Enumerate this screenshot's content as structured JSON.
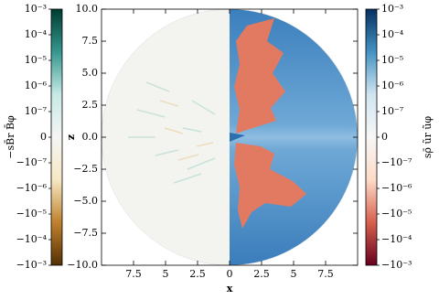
{
  "chart_data": {
    "type": "field",
    "xlabel": "x",
    "ylabel": "z",
    "xlim": [
      -10,
      10
    ],
    "xticks": [
      {
        "value": -7.5,
        "label": "7.5"
      },
      {
        "value": -5,
        "label": "5"
      },
      {
        "value": -2.5,
        "label": "2.5"
      },
      0,
      2.5,
      5,
      7.5
    ],
    "ylim": [
      -10,
      10
    ],
    "yticks": [
      {
        "value": -10,
        "label": "−10.0"
      },
      {
        "value": -7.5,
        "label": "−7.5"
      },
      {
        "value": -5,
        "label": "−5.0"
      },
      {
        "value": -2.5,
        "label": "−2.5"
      },
      {
        "value": 0,
        "label": "0.0"
      },
      {
        "value": 2.5,
        "label": "2.5"
      },
      {
        "value": 5,
        "label": "5.0"
      },
      {
        "value": 7.5,
        "label": "7.5"
      },
      {
        "value": 10,
        "label": "10.0"
      }
    ],
    "colorbars": [
      {
        "label": "−sB̄r B̄φ",
        "side": "left",
        "scale": "symlog",
        "linthresh": 1e-07,
        "lim": [
          -0.001,
          0.001
        ],
        "colors": [
          "#543005",
          "#bf812d",
          "#f6e8c3",
          "#f5f5f5",
          "#c7eae5",
          "#35978f",
          "#003c30"
        ],
        "ticks": [
          {
            "value": -0.001,
            "label": "−10⁻³"
          },
          {
            "value": -0.0001,
            "label": "−10⁻⁴"
          },
          {
            "value": -1e-05,
            "label": "−10⁻⁵"
          },
          {
            "value": -1e-06,
            "label": "−10⁻⁶"
          },
          {
            "value": -1e-07,
            "label": "−10⁻⁷"
          },
          0,
          {
            "value": 1e-07,
            "label": "10⁻⁷"
          },
          {
            "value": 1e-06,
            "label": "10⁻⁶"
          },
          {
            "value": 1e-05,
            "label": "10⁻⁵"
          },
          {
            "value": 0.0001,
            "label": "10⁻⁴"
          },
          {
            "value": 0.001,
            "label": "10⁻³"
          }
        ]
      },
      {
        "label": "sρ̄ ũr ũφ",
        "side": "right",
        "scale": "symlog",
        "linthresh": 1e-07,
        "lim": [
          -0.001,
          0.001
        ],
        "colors": [
          "#67001f",
          "#d6604d",
          "#fddbc7",
          "#f7f7f7",
          "#d1e5f0",
          "#4393c3",
          "#053061"
        ],
        "ticks": [
          {
            "value": -0.001,
            "label": "−10⁻³"
          },
          {
            "value": -0.0001,
            "label": "−10⁻⁴"
          },
          {
            "value": -1e-05,
            "label": "−10⁻⁵"
          },
          {
            "value": -1e-06,
            "label": "−10⁻⁶"
          },
          {
            "value": -1e-07,
            "label": "−10⁻⁷"
          },
          0,
          {
            "value": 1e-07,
            "label": "10⁻⁷"
          },
          {
            "value": 1e-06,
            "label": "10⁻⁶"
          },
          {
            "value": 1e-05,
            "label": "10⁻⁵"
          },
          {
            "value": 0.0001,
            "label": "10⁻⁴"
          },
          {
            "value": 0.001,
            "label": "10⁻³"
          }
        ]
      }
    ]
  }
}
